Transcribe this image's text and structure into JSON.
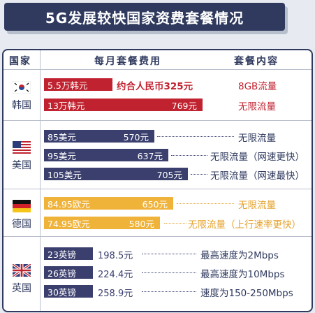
{
  "title": "5G发展较快国家资费套餐情况",
  "headers": {
    "country": "国家",
    "monthly_fee": "每月套餐费用",
    "package": "套餐内容"
  },
  "colors": {
    "korea": "#c0222f",
    "usa": "#3b3f6e",
    "germany": "#f0b33a",
    "uk": "#3b3f6e",
    "banner": "#2f3a5e"
  },
  "countries": [
    {
      "name": "韩国",
      "flag": "south-korea-flag-icon",
      "plans": [
        {
          "price": "5.5万韩元",
          "rmb": "约合人民币325元",
          "content": "8GB流量"
        },
        {
          "price": "13万韩元",
          "rmb": "769元",
          "content": "无限流量"
        }
      ]
    },
    {
      "name": "美国",
      "flag": "usa-flag-icon",
      "plans": [
        {
          "price": "85美元",
          "rmb": "570元",
          "content": "无限流量"
        },
        {
          "price": "95美元",
          "rmb": "637元",
          "content": "无限流量（网速更快）"
        },
        {
          "price": "105美元",
          "rmb": "705元",
          "content": "无限流量（网速最快）"
        }
      ]
    },
    {
      "name": "德国",
      "flag": "germany-flag-icon",
      "plans": [
        {
          "price": "84.95欧元",
          "rmb": "650元",
          "content": "无限流量"
        },
        {
          "price": "74.95欧元",
          "rmb": "580元",
          "content": "无限流量（上行速率更快）"
        }
      ]
    },
    {
      "name": "英国",
      "flag": "uk-flag-icon",
      "plans": [
        {
          "price": "23英镑",
          "rmb": "198.5元",
          "content": "最高速度为2Mbps"
        },
        {
          "price": "26英镑",
          "rmb": "224.4元",
          "content": "最高速度为10Mbps"
        },
        {
          "price": "30英镑",
          "rmb": "258.9元",
          "content": "速度为150-250Mbps"
        }
      ]
    }
  ]
}
